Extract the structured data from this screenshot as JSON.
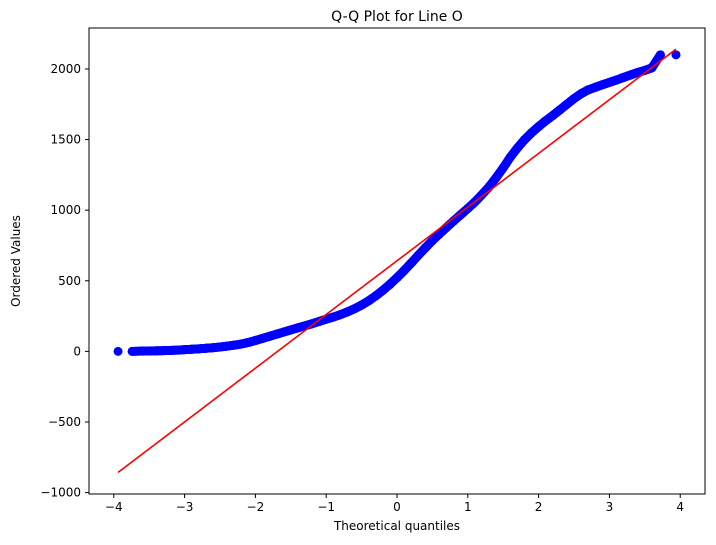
{
  "chart_data": {
    "type": "scatter",
    "title": "Q-Q Plot for Line O",
    "xlabel": "Theoretical quantiles",
    "ylabel": "Ordered Values",
    "xlim": [
      -4.35,
      4.35
    ],
    "ylim": [
      -1010,
      2290
    ],
    "x_ticks": [
      -4,
      -3,
      -2,
      -1,
      0,
      1,
      2,
      3,
      4
    ],
    "y_ticks": [
      -1000,
      -500,
      0,
      500,
      1000,
      1500,
      2000
    ],
    "grid": false,
    "colors": {
      "points": "#0000ff",
      "fit_line": "#ff0000"
    },
    "series": [
      {
        "kind": "points",
        "points": [
          [
            -3.94,
            0
          ],
          [
            -3.74,
            0
          ],
          [
            -3.6,
            2
          ],
          [
            -3.5,
            3
          ],
          [
            -3.4,
            4
          ],
          [
            -3.3,
            5
          ],
          [
            -3.2,
            7
          ],
          [
            -3.1,
            9
          ],
          [
            -3.0,
            12
          ],
          [
            -2.9,
            15
          ],
          [
            -2.8,
            18
          ],
          [
            -2.7,
            22
          ],
          [
            -2.6,
            26
          ],
          [
            -2.5,
            31
          ],
          [
            -2.4,
            37
          ],
          [
            -2.3,
            44
          ],
          [
            -2.2,
            52
          ],
          [
            -2.1,
            63
          ],
          [
            -2.0,
            77
          ],
          [
            -1.9,
            92
          ],
          [
            -1.8,
            107
          ],
          [
            -1.7,
            122
          ],
          [
            -1.6,
            137
          ],
          [
            -1.5,
            152
          ],
          [
            -1.4,
            167
          ],
          [
            -1.3,
            181
          ],
          [
            -1.2,
            196
          ],
          [
            -1.1,
            212
          ],
          [
            -1.0,
            228
          ],
          [
            -0.9,
            243
          ],
          [
            -0.8,
            260
          ],
          [
            -0.7,
            280
          ],
          [
            -0.6,
            302
          ],
          [
            -0.5,
            328
          ],
          [
            -0.4,
            358
          ],
          [
            -0.3,
            393
          ],
          [
            -0.2,
            432
          ],
          [
            -0.1,
            475
          ],
          [
            0.0,
            522
          ],
          [
            0.1,
            572
          ],
          [
            0.2,
            625
          ],
          [
            0.3,
            680
          ],
          [
            0.4,
            733
          ],
          [
            0.5,
            785
          ],
          [
            0.6,
            832
          ],
          [
            0.7,
            878
          ],
          [
            0.8,
            924
          ],
          [
            0.9,
            968
          ],
          [
            1.0,
            1012
          ],
          [
            1.1,
            1058
          ],
          [
            1.2,
            1110
          ],
          [
            1.3,
            1165
          ],
          [
            1.4,
            1230
          ],
          [
            1.5,
            1300
          ],
          [
            1.6,
            1375
          ],
          [
            1.7,
            1440
          ],
          [
            1.8,
            1498
          ],
          [
            1.9,
            1548
          ],
          [
            2.0,
            1592
          ],
          [
            2.1,
            1633
          ],
          [
            2.2,
            1670
          ],
          [
            2.3,
            1710
          ],
          [
            2.4,
            1750
          ],
          [
            2.5,
            1790
          ],
          [
            2.6,
            1825
          ],
          [
            2.7,
            1852
          ],
          [
            2.8,
            1870
          ],
          [
            2.9,
            1888
          ],
          [
            3.0,
            1905
          ],
          [
            3.1,
            1922
          ],
          [
            3.2,
            1940
          ],
          [
            3.3,
            1958
          ],
          [
            3.4,
            1975
          ],
          [
            3.5,
            1990
          ],
          [
            3.6,
            2008
          ],
          [
            3.72,
            2100
          ],
          [
            3.94,
            2100
          ]
        ]
      },
      {
        "kind": "line",
        "points": [
          [
            -3.94,
            -857
          ],
          [
            3.94,
            2140
          ]
        ]
      }
    ]
  }
}
